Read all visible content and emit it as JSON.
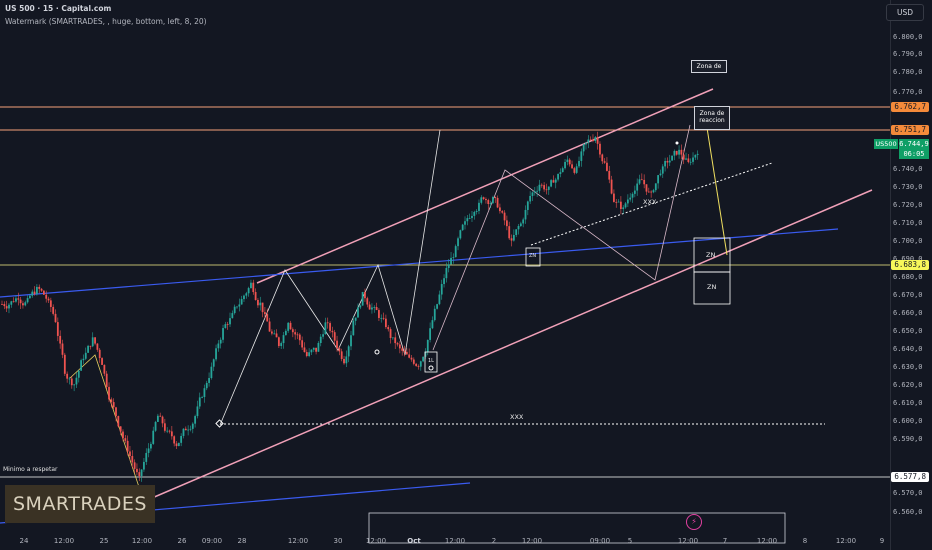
{
  "header": {
    "symbol_line": "US 500 · 15 · Capital.com",
    "watermark_line": "Watermark (SMARTRADES, , huge, bottom, left, 8, 20)"
  },
  "currency_button": "USD",
  "price_axis": {
    "ticks": [
      "6.800,0",
      "6.790,0",
      "6.780,0",
      "6.770,0",
      "6.740,0",
      "6.730,0",
      "6.720,0",
      "6.710,0",
      "6.700,0",
      "6.690,0",
      "6.680,0",
      "6.670,0",
      "6.660,0",
      "6.650,0",
      "6.640,0",
      "6.630,0",
      "6.620,0",
      "6.610,0",
      "6.600,0",
      "6.590,0",
      "6.570,0",
      "6.560,0"
    ],
    "tags": {
      "orange_top": "6.762,7",
      "orange_low": "6.751,7",
      "yellow": "6.683,8",
      "white": "6.577,8"
    },
    "current": {
      "symbol": "US500",
      "price": "6.744,9",
      "countdown": "06:05"
    }
  },
  "time_axis": [
    "24",
    "12:00",
    "25",
    "12:00",
    "26",
    "09:00",
    "28",
    "12:00",
    "30",
    "12:00",
    "Oct",
    "12:00",
    "2",
    "12:00",
    "09:00",
    "5",
    "12:00",
    "7",
    "12:00",
    "8",
    "12:00",
    "9"
  ],
  "annotations": {
    "zona_de": "Zona de",
    "zona_reaccion": "Zona de\nreaccion",
    "zn1": "ZN",
    "zn2": "ZN",
    "zn3": "ZN",
    "xxx_upper": "XXX",
    "xxx_lower": "XXX",
    "minimo": "Minimo a respetar",
    "small_box": "1L"
  },
  "brand": "SMARTRADES",
  "chart_data": {
    "type": "line",
    "title": "",
    "xlabel": "",
    "ylabel": "",
    "ylim": [
      6555,
      6810
    ],
    "series": [
      {
        "values": [
          6668,
          6672,
          6669,
          6675,
          6671,
          6660,
          6635,
          6628,
          6642,
          6650,
          6639,
          6618,
          6605,
          6592,
          6580,
          6596,
          6612,
          6603,
          6598,
          6606,
          6612,
          6625,
          6640,
          6655,
          6662,
          6670,
          6678,
          6668,
          6655,
          6648,
          6660,
          6652,
          6642,
          6645,
          6658,
          6650,
          6640,
          6660,
          6672,
          6666,
          6660,
          6652,
          6645,
          6640,
          6638,
          6650,
          6668,
          6685,
          6695,
          6708,
          6716,
          6722,
          6720,
          6712,
          6698,
          6708,
          6722,
          6728,
          6725,
          6732,
          6740,
          6735,
          6748,
          6752,
          6738,
          6720,
          6715,
          6725,
          6730,
          6722,
          6735,
          6740,
          6744,
          6738,
          6745
        ]
      }
    ]
  }
}
